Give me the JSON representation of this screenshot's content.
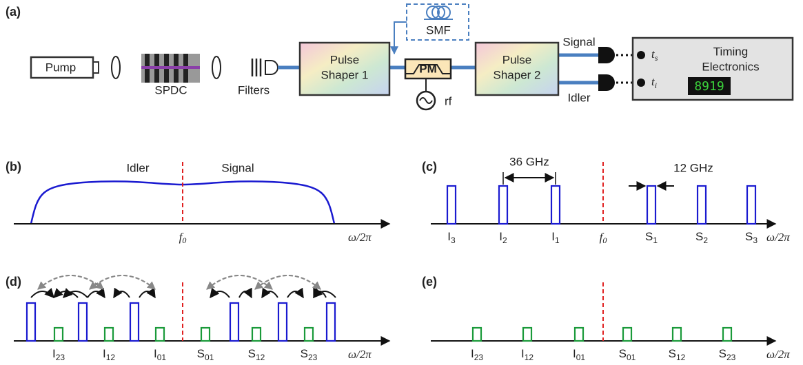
{
  "panel_a": {
    "label": "(a)",
    "pump": "Pump",
    "spdc": "SPDC",
    "filters": "Filters",
    "pulse_shaper_1": [
      "Pulse",
      "Shaper 1"
    ],
    "pm": "PM",
    "rf": "rf",
    "smf": "SMF",
    "pulse_shaper_2": [
      "Pulse",
      "Shaper 2"
    ],
    "signal": "Signal",
    "idler": "Idler",
    "t_s": {
      "main": "t",
      "sub": "s"
    },
    "t_i": {
      "main": "t",
      "sub": "i"
    },
    "timing_electronics": [
      "Timing",
      "Electronics"
    ],
    "display": "8919"
  },
  "panel_b": {
    "label": "(b)",
    "idler": "Idler",
    "signal": "Signal",
    "f0": {
      "main": "f",
      "sub": "0"
    },
    "axis_label": "ω/2π"
  },
  "panel_c": {
    "label": "(c)",
    "spacing": "36 GHz",
    "bin_width": "12 GHz",
    "f0": {
      "main": "f",
      "sub": "0"
    },
    "bins": [
      {
        "main": "I",
        "sub": "3"
      },
      {
        "main": "I",
        "sub": "2"
      },
      {
        "main": "I",
        "sub": "1"
      },
      {
        "main": "S",
        "sub": "1"
      },
      {
        "main": "S",
        "sub": "2"
      },
      {
        "main": "S",
        "sub": "3"
      }
    ],
    "axis_label": "ω/2π"
  },
  "panel_d": {
    "label": "(d)",
    "bins": [
      {
        "main": "I",
        "sub": "23"
      },
      {
        "main": "I",
        "sub": "12"
      },
      {
        "main": "I",
        "sub": "01"
      },
      {
        "main": "S",
        "sub": "01"
      },
      {
        "main": "S",
        "sub": "12"
      },
      {
        "main": "S",
        "sub": "23"
      }
    ],
    "axis_label": "ω/2π"
  },
  "panel_e": {
    "label": "(e)",
    "bins": [
      {
        "main": "I",
        "sub": "23"
      },
      {
        "main": "I",
        "sub": "12"
      },
      {
        "main": "I",
        "sub": "01"
      },
      {
        "main": "S",
        "sub": "01"
      },
      {
        "main": "S",
        "sub": "12"
      },
      {
        "main": "S",
        "sub": "23"
      }
    ],
    "axis_label": "ω/2π"
  }
}
